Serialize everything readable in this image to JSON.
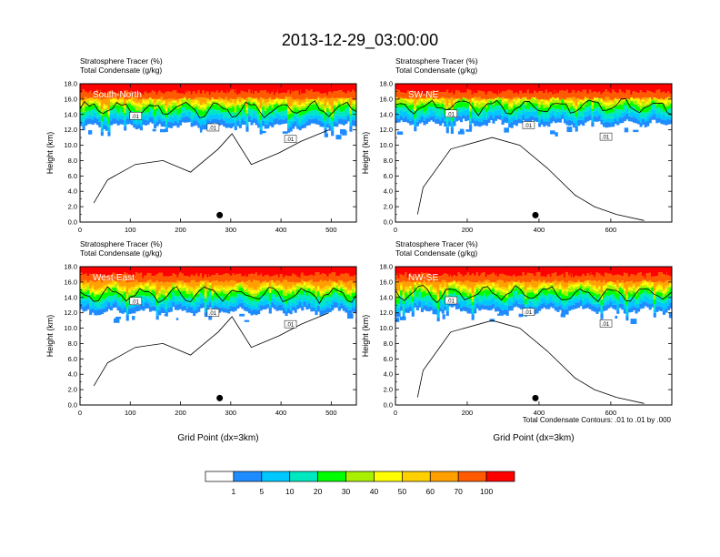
{
  "title": "2013-12-29_03:00:00",
  "colors": {
    "levels": [
      "#ffffff",
      "#1e8cff",
      "#00c8ff",
      "#00e8c0",
      "#00ff00",
      "#a8f000",
      "#ffff00",
      "#ffd000",
      "#ffa000",
      "#ff5a00",
      "#ff0000"
    ]
  },
  "chart_data": [
    {
      "type": "heatmap",
      "panel_label": "South-North",
      "title_lines": [
        "Stratosphere Tracer   (%)",
        "Total Condensate   (g/kg)"
      ],
      "ylabel": "Height (km)",
      "xlabel": "",
      "xlim": [
        0,
        550
      ],
      "ylim": [
        0,
        18
      ],
      "xticks": [
        0,
        100,
        200,
        300,
        400,
        500
      ],
      "yticks": [
        0,
        2,
        4,
        6,
        8,
        10,
        12,
        14,
        16,
        18
      ],
      "yticklabels": [
        "0.0",
        "2.0",
        "4.0",
        "6.0",
        "8.0",
        "10.0",
        "12.0",
        "14.0",
        "16.0",
        "18.0"
      ],
      "tropopause_base_km": 12.5,
      "marker": {
        "x": 278,
        "y": 0.9
      },
      "contour_value": ".01"
    },
    {
      "type": "heatmap",
      "panel_label": "SW-NE",
      "title_lines": [
        "Stratosphere Tracer   (%)",
        "Total Condensate   (g/kg)"
      ],
      "ylabel": "Height (km)",
      "xlabel": "",
      "xlim": [
        0,
        770
      ],
      "ylim": [
        0,
        18
      ],
      "xticks": [
        0,
        200,
        400,
        600
      ],
      "yticks": [
        0,
        2,
        4,
        6,
        8,
        10,
        12,
        14,
        16,
        18
      ],
      "yticklabels": [
        "0.0",
        "2.0",
        "4.0",
        "6.0",
        "8.0",
        "10.0",
        "12.0",
        "14.0",
        "16.0",
        "18.0"
      ],
      "tropopause_base_km": 12.8,
      "marker": {
        "x": 390,
        "y": 0.9
      },
      "contour_value": ".01"
    },
    {
      "type": "heatmap",
      "panel_label": "West-East",
      "title_lines": [
        "Stratosphere Tracer   (%)",
        "Total Condensate   (g/kg)"
      ],
      "ylabel": "Height (km)",
      "xlabel": "Grid Point (dx=3km)",
      "xlim": [
        0,
        550
      ],
      "ylim": [
        0,
        18
      ],
      "xticks": [
        0,
        100,
        200,
        300,
        400,
        500
      ],
      "yticks": [
        0,
        2,
        4,
        6,
        8,
        10,
        12,
        14,
        16,
        18
      ],
      "yticklabels": [
        "0.0",
        "2.0",
        "4.0",
        "6.0",
        "8.0",
        "10.0",
        "12.0",
        "14.0",
        "16.0",
        "18.0"
      ],
      "tropopause_base_km": 12.2,
      "marker": {
        "x": 278,
        "y": 0.9
      },
      "contour_value": ".01"
    },
    {
      "type": "heatmap",
      "panel_label": "NW-SE",
      "title_lines": [
        "Stratosphere Tracer   (%)",
        "Total Condensate   (g/kg)"
      ],
      "ylabel": "Height (km)",
      "xlabel": "Grid Point (dx=3km)",
      "xlim": [
        0,
        770
      ],
      "ylim": [
        0,
        18
      ],
      "xticks": [
        0,
        200,
        400,
        600
      ],
      "yticks": [
        0,
        2,
        4,
        6,
        8,
        10,
        12,
        14,
        16,
        18
      ],
      "yticklabels": [
        "0.0",
        "2.0",
        "4.0",
        "6.0",
        "8.0",
        "10.0",
        "12.0",
        "14.0",
        "16.0",
        "18.0"
      ],
      "tropopause_base_km": 12.3,
      "marker": {
        "x": 390,
        "y": 0.9
      },
      "contour_value": ".01"
    }
  ],
  "contour_note": "Total Condensate Contours: .01 to .01 by .000",
  "colorbar": {
    "tick_labels": [
      "1",
      "5",
      "10",
      "20",
      "30",
      "40",
      "50",
      "60",
      "70",
      "100"
    ]
  }
}
